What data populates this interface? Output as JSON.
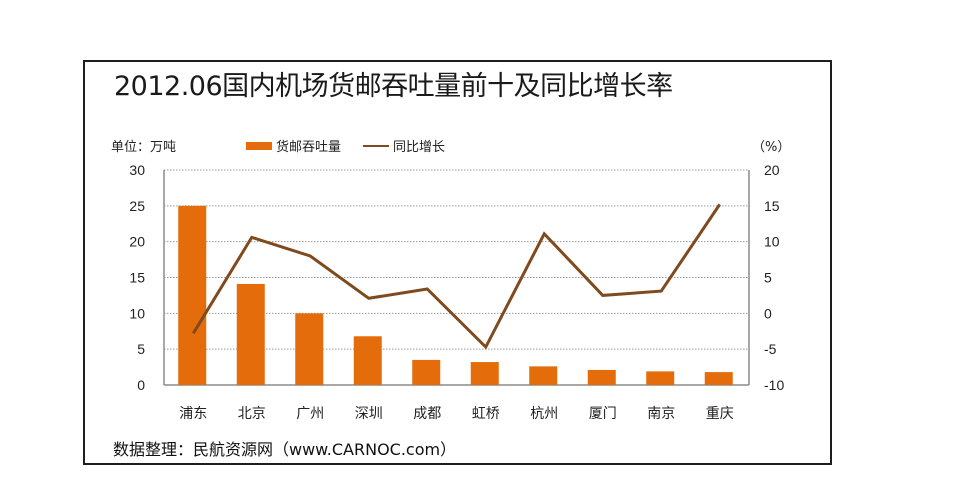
{
  "chart_data": {
    "type": "bar+line",
    "title": "2012.06国内机场货邮吞吐量前十及同比增长率",
    "categories": [
      "浦东",
      "北京",
      "广州",
      "深圳",
      "成都",
      "虹桥",
      "杭州",
      "厦门",
      "南京",
      "重庆"
    ],
    "series": [
      {
        "name": "货邮吞吐量",
        "type": "bar",
        "axis": "left",
        "color": "#E46C0A",
        "values": [
          25.0,
          14.1,
          10.0,
          6.8,
          3.5,
          3.2,
          2.6,
          2.1,
          1.9,
          1.8
        ]
      },
      {
        "name": "同比增长",
        "type": "line",
        "axis": "right",
        "color": "#7F4A1E",
        "values": [
          -2.8,
          10.6,
          8.0,
          2.1,
          3.4,
          -4.7,
          11.1,
          2.5,
          3.1,
          15.2
        ]
      }
    ],
    "left_axis": {
      "label": "单位：万吨",
      "ylim": [
        0,
        30
      ],
      "ticks": [
        "0",
        "5",
        "10",
        "15",
        "20",
        "25",
        "30"
      ]
    },
    "right_axis": {
      "label": "（%）",
      "ylim": [
        -10,
        20
      ],
      "ticks": [
        "-10",
        "-5",
        "0",
        "5",
        "10",
        "15",
        "20"
      ]
    },
    "grid": true,
    "grid_style": "dotted",
    "legend_position": "top"
  },
  "header": {
    "title": "2012.06国内机场货邮吞吐量前十及同比增长率",
    "unit_label": "单位：万吨",
    "pct_label": "（%）"
  },
  "legend": {
    "bar_label": "货邮吞吐量",
    "line_label": "同比增长"
  },
  "colors": {
    "bar": "#E46C0A",
    "line": "#7F4A1E",
    "grid": "#9a9a9a",
    "axis": "#8c8c8c"
  },
  "footer": {
    "source": "数据整理：民航资源网（www.CARNOC.com）"
  }
}
